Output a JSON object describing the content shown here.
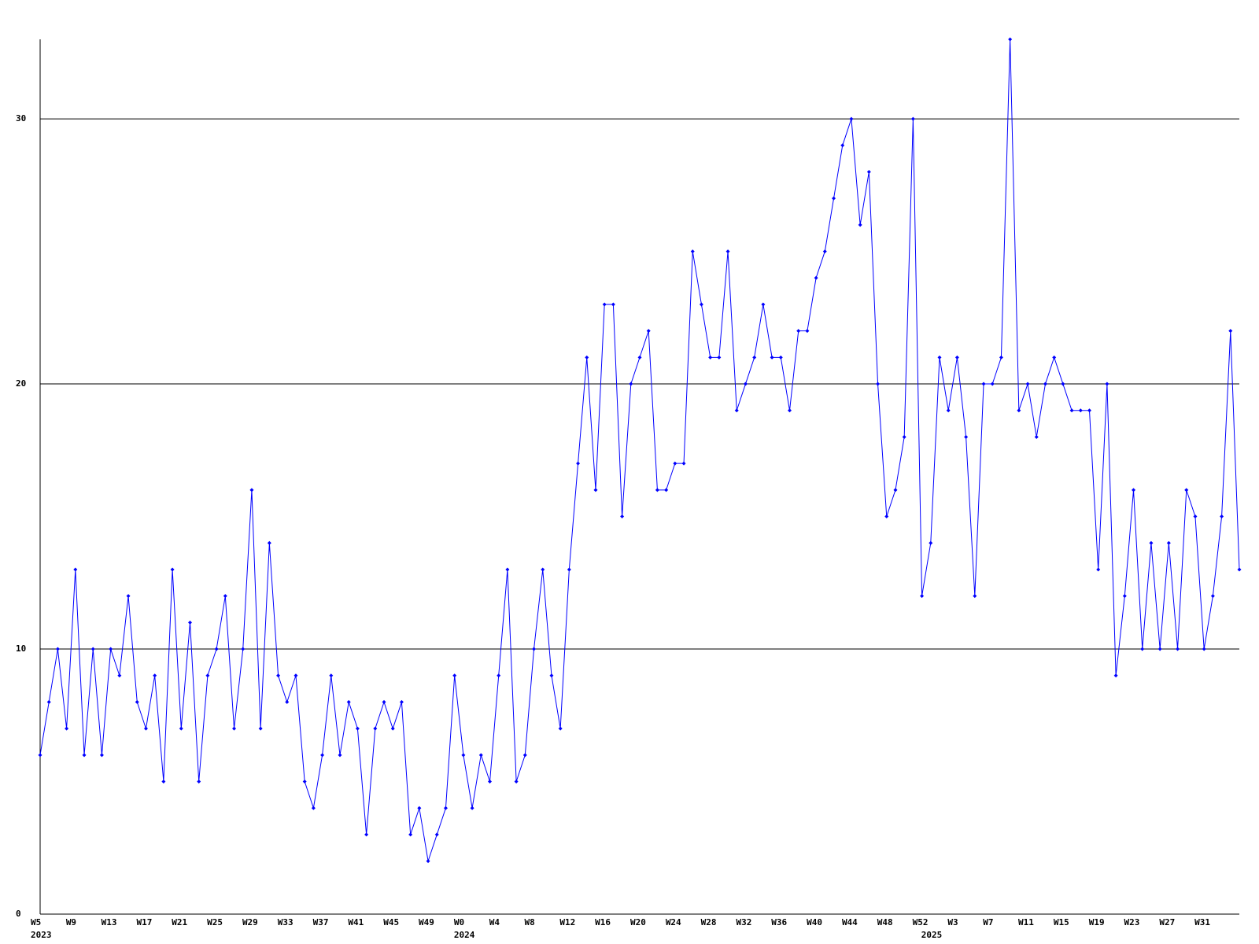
{
  "chart_data": {
    "type": "line",
    "color": "#0000ff",
    "categories": [
      "W5",
      null,
      null,
      null,
      "W9",
      null,
      null,
      null,
      "W13",
      null,
      null,
      null,
      "W17",
      null,
      null,
      null,
      "W21",
      null,
      null,
      null,
      "W25",
      null,
      null,
      null,
      "W29",
      null,
      null,
      null,
      "W33",
      null,
      null,
      null,
      "W37",
      null,
      null,
      null,
      "W41",
      null,
      null,
      null,
      "W45",
      null,
      null,
      null,
      "W49",
      null,
      null,
      null,
      "W0",
      null,
      null,
      null,
      "W4",
      null,
      null,
      null,
      "W8",
      null,
      null,
      null,
      "W12",
      null,
      null,
      null,
      "W16",
      null,
      null,
      null,
      "W20",
      null,
      null,
      null,
      "W24",
      null,
      null,
      null,
      "W28",
      null,
      null,
      null,
      "W32",
      null,
      null,
      null,
      "W36",
      null,
      null,
      null,
      "W40",
      null,
      null,
      null,
      "W44",
      null,
      null,
      null,
      "W48",
      null,
      null,
      null,
      "W52",
      null,
      null,
      null,
      "W3",
      null,
      null,
      null,
      "W7",
      null,
      null,
      null,
      "W11",
      null,
      null,
      null,
      "W15",
      null,
      null,
      null,
      "W19",
      null,
      null,
      null,
      "W23",
      null,
      null,
      null,
      "W27",
      null,
      null,
      null,
      "W31",
      null,
      null,
      null,
      null
    ],
    "years": [
      "2023",
      null,
      null,
      null,
      null,
      null,
      null,
      null,
      null,
      null,
      null,
      null,
      null,
      null,
      null,
      null,
      null,
      null,
      null,
      null,
      null,
      null,
      null,
      null,
      null,
      null,
      null,
      null,
      null,
      null,
      null,
      null,
      null,
      null,
      null,
      null,
      null,
      null,
      null,
      null,
      null,
      null,
      null,
      null,
      null,
      null,
      null,
      null,
      "2024",
      null,
      null,
      null,
      null,
      null,
      null,
      null,
      null,
      null,
      null,
      null,
      null,
      null,
      null,
      null,
      null,
      null,
      null,
      null,
      null,
      null,
      null,
      null,
      null,
      null,
      null,
      null,
      null,
      null,
      null,
      null,
      null,
      null,
      null,
      null,
      null,
      null,
      null,
      null,
      null,
      null,
      null,
      null,
      null,
      null,
      null,
      null,
      null,
      null,
      null,
      null,
      null,
      "2025",
      null,
      null,
      null,
      null,
      null,
      null,
      null,
      null,
      null,
      null,
      null,
      null,
      null,
      null,
      null,
      null,
      null,
      null,
      null,
      null,
      null,
      null,
      null,
      null,
      null,
      null,
      null,
      null,
      null,
      null,
      null,
      null,
      null,
      null,
      null
    ],
    "values": [
      6,
      8,
      10,
      7,
      13,
      6,
      10,
      6,
      10,
      9,
      12,
      8,
      7,
      9,
      5,
      13,
      7,
      11,
      5,
      9,
      10,
      12,
      7,
      10,
      16,
      7,
      14,
      9,
      8,
      9,
      5,
      4,
      6,
      9,
      6,
      8,
      7,
      3,
      7,
      8,
      7,
      8,
      3,
      4,
      2,
      3,
      4,
      9,
      6,
      4,
      6,
      5,
      9,
      13,
      5,
      6,
      10,
      13,
      9,
      7,
      13,
      17,
      21,
      16,
      23,
      23,
      15,
      20,
      21,
      22,
      16,
      16,
      17,
      17,
      25,
      23,
      21,
      21,
      25,
      19,
      20,
      21,
      23,
      21,
      21,
      19,
      22,
      22,
      24,
      25,
      27,
      29,
      30,
      26,
      28,
      20,
      15,
      16,
      18,
      30,
      12,
      14,
      21,
      19,
      21,
      18,
      12,
      20,
      20,
      21,
      33,
      19,
      20,
      18,
      20,
      21,
      20,
      19,
      19,
      19,
      13,
      20,
      9,
      12,
      16,
      10,
      14,
      10,
      14,
      10,
      16,
      15,
      10,
      12,
      15,
      22,
      13
    ],
    "ylim": [
      0,
      33
    ],
    "yticks": [
      0,
      10,
      20,
      30
    ],
    "grid": true
  }
}
